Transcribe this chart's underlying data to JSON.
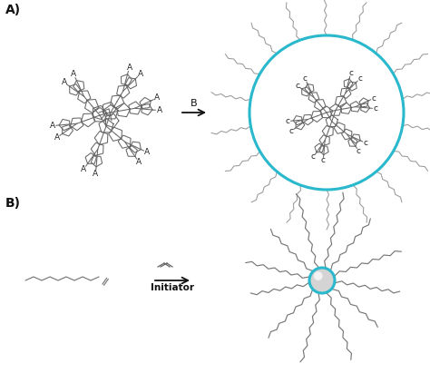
{
  "bg_color": "#ffffff",
  "line_color": "#666666",
  "circle_color": "#29b8cc",
  "circle_linewidth": 2.2,
  "arrow_color": "#111111",
  "chain_color": "#777777",
  "sphere_fill": "#d0d0d0",
  "sphere_edge": "#29b8cc",
  "sphere_highlight": "#f0f0f0",
  "label_A": "A",
  "label_C": "c",
  "label_B_arrow": "B",
  "label_Initiator": "Initiator",
  "section_A_label": "A)",
  "section_B_label": "B)",
  "font_size_section": 10,
  "font_size_label": 6.5,
  "font_size_initiator": 7.5,
  "lw_mol": 0.75,
  "lw_chain": 0.85
}
